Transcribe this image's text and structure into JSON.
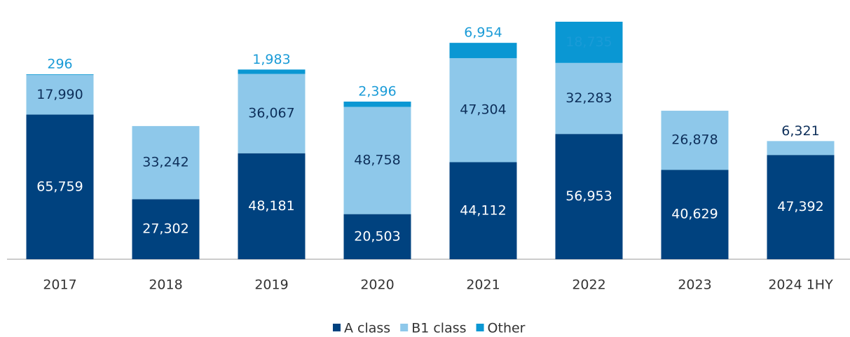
{
  "chart_data": {
    "type": "stacked_bar",
    "categories": [
      "2017",
      "2018",
      "2019",
      "2020",
      "2021",
      "2022",
      "2023",
      "2024 1HY"
    ],
    "series": [
      {
        "name": "A class",
        "color": "#00427f",
        "label_color": "#ffffff",
        "values": [
          65759,
          27302,
          48181,
          20503,
          44112,
          56953,
          40629,
          47392
        ],
        "value_labels": [
          "65,759",
          "27,302",
          "48,181",
          "20,503",
          "44,112",
          "56,953",
          "40,629",
          "47,392"
        ]
      },
      {
        "name": "B1 class",
        "color": "#8ec8ea",
        "label_color": "#0d2f5a",
        "values": [
          17990,
          33242,
          36067,
          48758,
          47304,
          32283,
          26878,
          6321
        ],
        "value_labels": [
          "17,990",
          "33,242",
          "36,067",
          "48,758",
          "47,304",
          "32,283",
          "26,878",
          "6,321"
        ]
      },
      {
        "name": "Other",
        "color": "#0a97d3",
        "label_color": "#1a9bd7",
        "values": [
          296,
          null,
          1983,
          2396,
          6954,
          18735,
          null,
          null
        ],
        "value_labels": [
          "296",
          null,
          "1,983",
          "2,396",
          "6,954",
          "18,735",
          null,
          null
        ]
      }
    ],
    "legend": "bottom"
  }
}
